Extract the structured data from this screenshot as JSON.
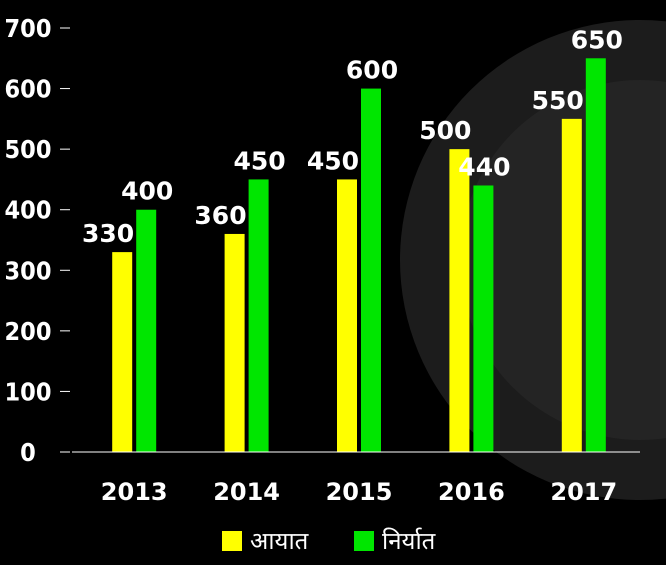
{
  "chart_data": {
    "type": "bar",
    "categories": [
      "2013",
      "2014",
      "2015",
      "2016",
      "2017"
    ],
    "series": [
      {
        "name": "आयात",
        "values": [
          330,
          360,
          450,
          500,
          550
        ],
        "color": "#ffff00"
      },
      {
        "name": "निर्यात",
        "values": [
          400,
          450,
          600,
          440,
          650
        ],
        "color": "#00e600"
      }
    ],
    "yticks": [
      "0",
      "100",
      "200",
      "300",
      "400",
      "500",
      "600",
      "700"
    ],
    "ylim": [
      0,
      700
    ],
    "grid": false,
    "legend_position": "bottom"
  },
  "background": "#000000"
}
